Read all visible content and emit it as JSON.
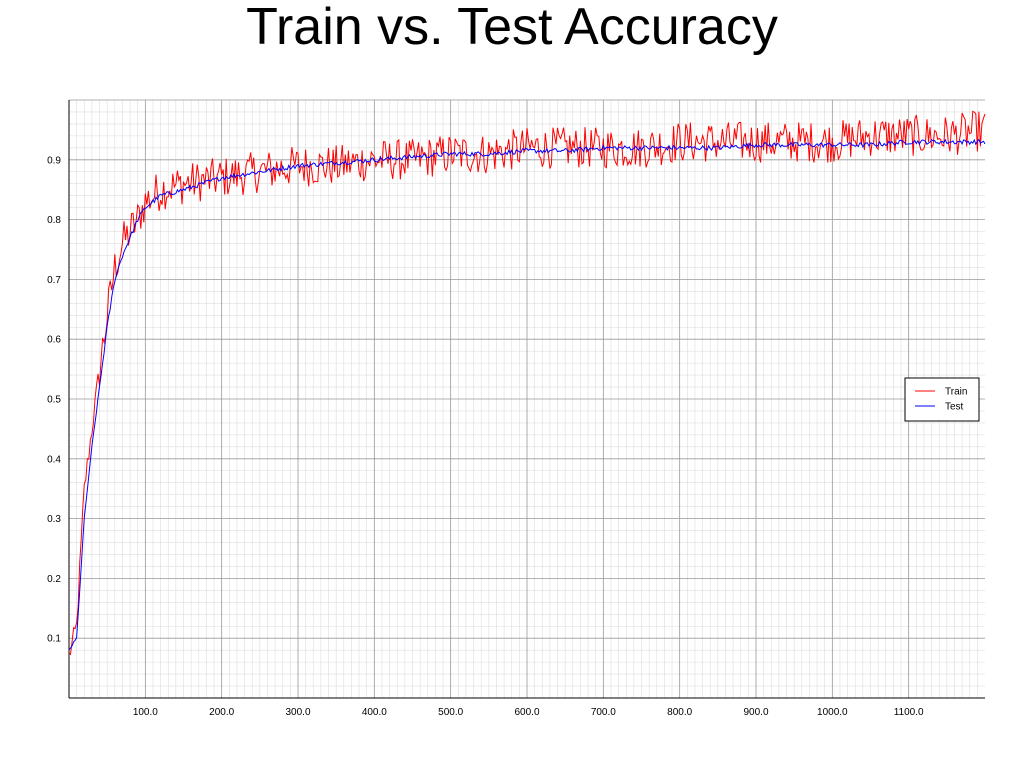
{
  "title": "Train vs. Test Accuracy",
  "chart_data": {
    "type": "line",
    "title": "Train vs. Test Accuracy",
    "xlabel": "",
    "ylabel": "",
    "xlim": [
      0,
      1200
    ],
    "ylim": [
      0,
      1.0
    ],
    "x_major_ticks": [
      100,
      200,
      300,
      400,
      500,
      600,
      700,
      800,
      900,
      1000,
      1100
    ],
    "x_tick_labels": [
      "100.0",
      "200.0",
      "300.0",
      "400.0",
      "500.0",
      "600.0",
      "700.0",
      "800.0",
      "900.0",
      "1000.0",
      "1100.0"
    ],
    "y_major_ticks": [
      0.1,
      0.2,
      0.3,
      0.4,
      0.5,
      0.6,
      0.7,
      0.8,
      0.9
    ],
    "y_tick_labels": [
      "0.1",
      "0.2",
      "0.3",
      "0.4",
      "0.5",
      "0.6",
      "0.7",
      "0.8",
      "0.9"
    ],
    "grid": true,
    "legend_position": "right",
    "series": [
      {
        "name": "Train",
        "color": "#ff0000",
        "x": [
          0,
          10,
          20,
          30,
          40,
          50,
          60,
          70,
          80,
          90,
          100,
          120,
          150,
          200,
          250,
          300,
          350,
          400,
          450,
          500,
          550,
          600,
          650,
          700,
          750,
          800,
          850,
          900,
          950,
          1000,
          1050,
          1100,
          1150,
          1200
        ],
        "values": [
          0.07,
          0.12,
          0.35,
          0.45,
          0.55,
          0.64,
          0.72,
          0.76,
          0.78,
          0.8,
          0.83,
          0.85,
          0.86,
          0.87,
          0.88,
          0.89,
          0.89,
          0.9,
          0.9,
          0.91,
          0.91,
          0.92,
          0.92,
          0.92,
          0.92,
          0.93,
          0.93,
          0.93,
          0.93,
          0.93,
          0.94,
          0.94,
          0.94,
          0.95
        ],
        "noise": 0.035
      },
      {
        "name": "Test",
        "color": "#0000ff",
        "x": [
          0,
          10,
          20,
          30,
          40,
          50,
          60,
          70,
          80,
          90,
          100,
          120,
          150,
          200,
          250,
          300,
          350,
          400,
          450,
          500,
          550,
          600,
          650,
          700,
          750,
          800,
          850,
          900,
          950,
          1000,
          1050,
          1100,
          1150,
          1200
        ],
        "values": [
          0.08,
          0.1,
          0.3,
          0.42,
          0.52,
          0.62,
          0.7,
          0.74,
          0.77,
          0.8,
          0.82,
          0.84,
          0.85,
          0.87,
          0.88,
          0.89,
          0.895,
          0.9,
          0.905,
          0.91,
          0.91,
          0.915,
          0.915,
          0.92,
          0.92,
          0.92,
          0.92,
          0.925,
          0.925,
          0.925,
          0.925,
          0.93,
          0.93,
          0.93
        ],
        "noise": 0.004
      }
    ]
  }
}
